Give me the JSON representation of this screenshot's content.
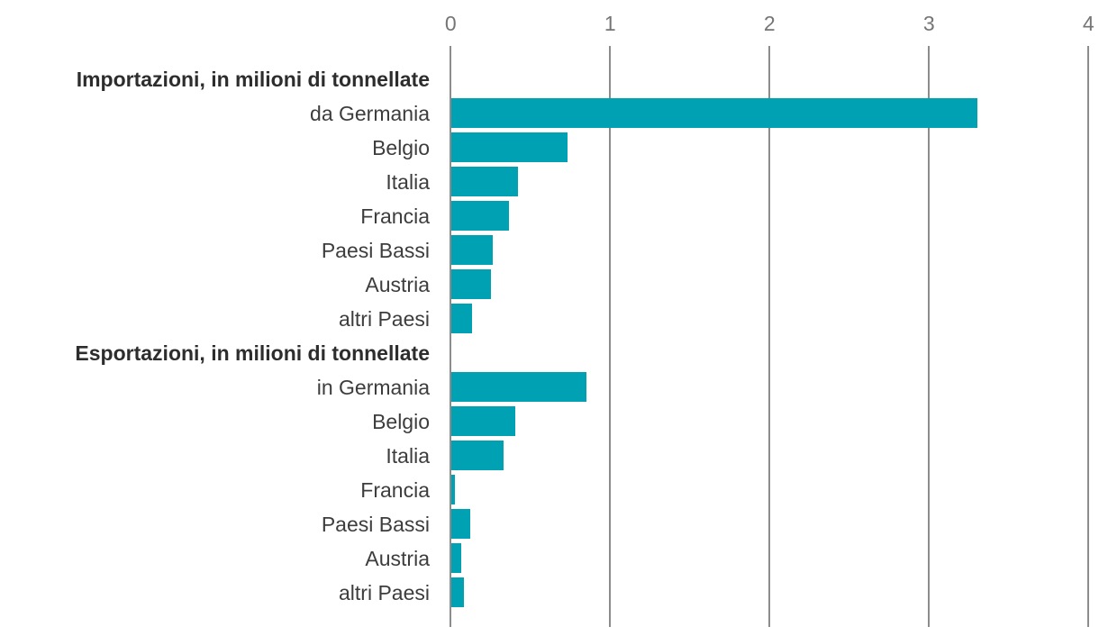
{
  "chart_data": {
    "type": "bar",
    "orientation": "horizontal",
    "title": "",
    "xlabel": "",
    "ylabel": "",
    "xlim": [
      0,
      4
    ],
    "x_ticks": [
      "0",
      "1",
      "2",
      "3",
      "4"
    ],
    "grid": true,
    "legend": false,
    "groups": [
      {
        "heading": "Importazioni, in milioni di tonnellate",
        "categories": [
          "da Germania",
          "Belgio",
          "Italia",
          "Francia",
          "Paesi Bassi",
          "Austria",
          "altri Paesi"
        ],
        "values": [
          3.3,
          0.73,
          0.42,
          0.36,
          0.26,
          0.25,
          0.13
        ]
      },
      {
        "heading": "Esportazioni, in milioni di tonnellate",
        "categories": [
          "in Germania",
          "Belgio",
          "Italia",
          "Francia",
          "Paesi Bassi",
          "Austria",
          "altri Paesi"
        ],
        "values": [
          0.85,
          0.4,
          0.33,
          0.02,
          0.12,
          0.06,
          0.08
        ]
      }
    ]
  },
  "colors": {
    "bar": "#00a1b3",
    "gridline": "#8c8c8c",
    "tick_label": "#757575",
    "category_label": "#3d3d3d",
    "heading_label": "#2d2d2d",
    "background": "#ffffff"
  }
}
